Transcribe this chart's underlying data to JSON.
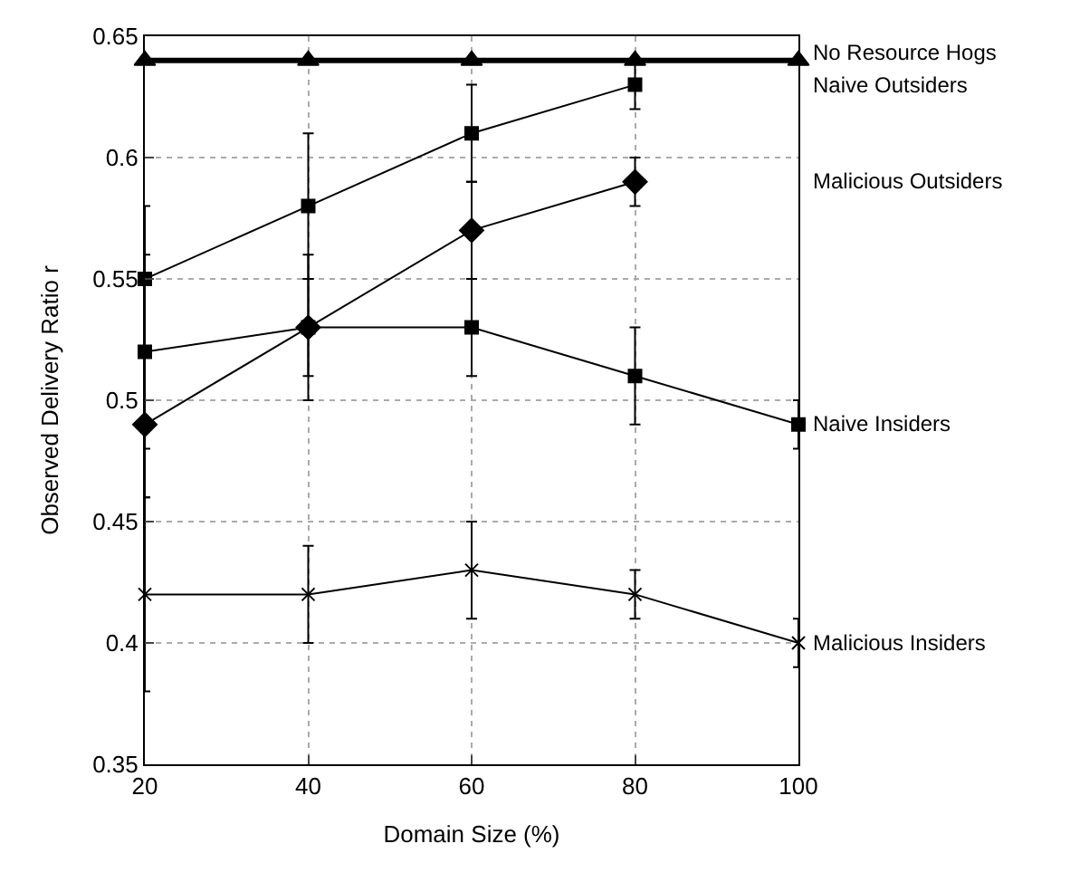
{
  "chart_data": {
    "type": "line",
    "xlabel": "Domain Size (%)",
    "ylabel": "Observed Delivery Ratio r",
    "x": [
      20,
      40,
      60,
      80,
      100
    ],
    "series": [
      {
        "name": "No Resource Hogs",
        "color": "#000000",
        "marker": "triangle",
        "values": [
          0.64,
          0.64,
          0.64,
          0.64,
          0.64
        ]
      },
      {
        "name": "Naive Outsiders",
        "color": "#000000",
        "marker": "square",
        "values": [
          0.55,
          0.58,
          0.61,
          0.63,
          null
        ],
        "errors": [
          0.03,
          0.03,
          0.02,
          0.01,
          null
        ]
      },
      {
        "name": "Malicious Outsiders",
        "color": "#000000",
        "marker": "diamond",
        "values": [
          0.49,
          0.53,
          0.57,
          0.59,
          null
        ],
        "errors": [
          0.03,
          0.03,
          0.02,
          0.01,
          null
        ]
      },
      {
        "name": "Naive Insiders",
        "color": "#000000",
        "marker": "square",
        "values": [
          0.52,
          0.53,
          0.53,
          0.51,
          0.49
        ],
        "errors": [
          0.04,
          0.02,
          0.02,
          0.02,
          0.01
        ]
      },
      {
        "name": "Malicious Insiders",
        "color": "#000000",
        "marker": "cross",
        "values": [
          0.42,
          0.42,
          0.43,
          0.42,
          0.4
        ],
        "errors": [
          0.04,
          0.02,
          0.02,
          0.01,
          0.01
        ]
      }
    ],
    "xlim": [
      20,
      100
    ],
    "xticks": [
      20,
      40,
      60,
      80,
      100
    ],
    "ylim": [
      0.35,
      0.65
    ],
    "yticks": [
      {
        "value": 0.35,
        "label": "0.35"
      },
      {
        "value": 0.4,
        "label": "0.4"
      },
      {
        "value": 0.45,
        "label": "0.45"
      },
      {
        "value": 0.5,
        "label": "0.5"
      },
      {
        "value": 0.55,
        "label": "0.55"
      },
      {
        "value": 0.6,
        "label": "0.6"
      },
      {
        "value": 0.65,
        "label": "0.65"
      }
    ],
    "grid": true,
    "legend": false,
    "line_style": "solid"
  }
}
